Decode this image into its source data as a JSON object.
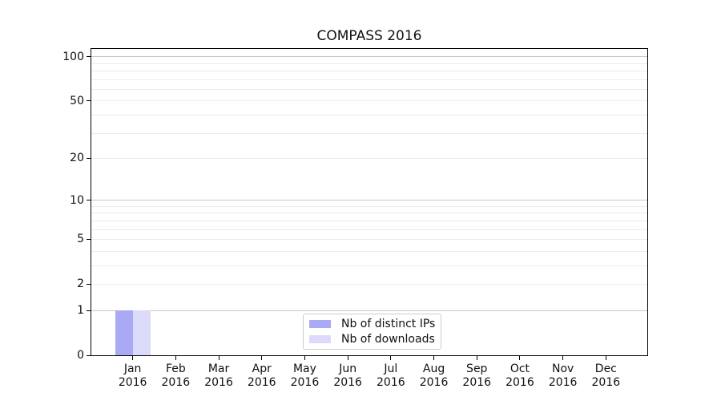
{
  "chart_data": {
    "type": "bar",
    "title": "COMPASS 2016",
    "categories": [
      "Jan 2016",
      "Feb 2016",
      "Mar 2016",
      "Apr 2016",
      "May 2016",
      "Jun 2016",
      "Jul 2016",
      "Aug 2016",
      "Sep 2016",
      "Oct 2016",
      "Nov 2016",
      "Dec 2016"
    ],
    "series": [
      {
        "name": "Nb of distinct IPs",
        "color": "#a9a9f4",
        "values": [
          1,
          0,
          0,
          0,
          0,
          0,
          0,
          0,
          0,
          0,
          0,
          0
        ]
      },
      {
        "name": "Nb of downloads",
        "color": "#dbdbf9",
        "values": [
          1,
          0,
          0,
          0,
          0,
          0,
          0,
          0,
          0,
          0,
          0,
          0
        ]
      }
    ],
    "yscale": "log1p",
    "ylim": [
      0,
      113
    ],
    "yticks": [
      0,
      1,
      2,
      5,
      10,
      20,
      50,
      100
    ],
    "grid_major": [
      1,
      10,
      100
    ],
    "grid_minor": [
      2,
      3,
      4,
      5,
      6,
      7,
      8,
      9,
      20,
      30,
      40,
      50,
      60,
      70,
      80,
      90
    ],
    "grid": "horizontal",
    "legend_position": "bottom-center-inside",
    "colors": {
      "major_grid": "#c6c6c6",
      "minor_grid": "#ececec",
      "spine": "#000000",
      "text": "#111111",
      "legend_border": "#cccccc",
      "background": "#ffffff"
    }
  }
}
